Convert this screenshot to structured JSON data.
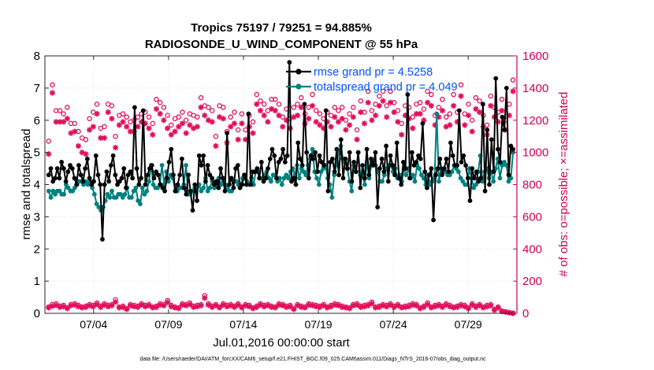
{
  "chart_data": {
    "type": "line",
    "title_line1": "Tropics 75197 / 79251 = 94.885%",
    "title_line2": "RADIOSONDE_U_WIND_COMPONENT @ 55 hPa",
    "xlabel": "Jul.01,2016 00:00:00 start",
    "ylabel_left": "rmse and totalspread",
    "ylabel_right": "# of obs: o=possible; ×=assimilated",
    "footer": "data file: /Users/raeder/DAI/ATM_forcXX/CAM6_setup/f.e21.FHIST_BGC.f09_025.CAM6assim.011/Diags_NTrS_2016-07/obs_diag_output.nc",
    "xlim": [
      0.75,
      32.25
    ],
    "ylim_left": [
      0,
      8
    ],
    "ylim_right": [
      0,
      1600
    ],
    "x_ticks": [
      {
        "x": 4,
        "label": "07/04"
      },
      {
        "x": 9,
        "label": "07/09"
      },
      {
        "x": 14,
        "label": "07/14"
      },
      {
        "x": 19,
        "label": "07/19"
      },
      {
        "x": 24,
        "label": "07/24"
      },
      {
        "x": 29,
        "label": "07/29"
      }
    ],
    "y_ticks_left": [
      0,
      1,
      2,
      3,
      4,
      5,
      6,
      7,
      8
    ],
    "y_ticks_right": [
      0,
      200,
      400,
      600,
      800,
      1000,
      1200,
      1400,
      1600
    ],
    "colors": {
      "rmse": "#000000",
      "spread": "#008080",
      "obs": "#e0105a",
      "legend_text": "#0050ff",
      "right_axis": "#cc0055"
    },
    "series": [
      {
        "name": "rmse grand pr = 4.5258",
        "axis": "left",
        "values": [
          4.3,
          4.5,
          4.1,
          4.2,
          4.5,
          4.2,
          4.7,
          4.5,
          4.1,
          4.4,
          4.6,
          4.5,
          4.2,
          4.0,
          4.6,
          4.3,
          4.1,
          4.5,
          4.8,
          4.2,
          4.0,
          4.1,
          4.9,
          4.3,
          4.0,
          2.3,
          4.0,
          4.4,
          4.1,
          4.6,
          4.9,
          4.3,
          4.0,
          4.1,
          4.2,
          4.5,
          3.9,
          4.3,
          4.4,
          4.2,
          6.4,
          4.5,
          4.0,
          4.2,
          6.3,
          4.0,
          4.3,
          4.5,
          4.6,
          4.2,
          4.4,
          4.3,
          4.0,
          3.9,
          3.8,
          4.2,
          4.7,
          5.1,
          4.3,
          3.8,
          4.0,
          4.3,
          4.8,
          3.9,
          3.7,
          4.3,
          3.8,
          3.2,
          4.0,
          3.5,
          4.9,
          4.6,
          4.9,
          4.1,
          4.6,
          4.3,
          4.2,
          4.0,
          4.1,
          3.9,
          4.5,
          4.2,
          3.8,
          5.6,
          4.0,
          4.2,
          3.9,
          4.5,
          4.6,
          3.9,
          4.0,
          4.3,
          4.0,
          6.2,
          4.0,
          4.4,
          4.4,
          4.5,
          4.2,
          4.7,
          4.1,
          4.2,
          4.5,
          4.8,
          5.1,
          4.9,
          4.2,
          4.7,
          4.8,
          5.1,
          4.7,
          4.9,
          7.8,
          4.1,
          4.2,
          4.0,
          5.3,
          4.8,
          4.6,
          6.5,
          5.0,
          4.2,
          4.9,
          4.8,
          5.0,
          4.4,
          4.9,
          4.7,
          4.6,
          6.3,
          3.8,
          4.7,
          4.8,
          4.4,
          5.1,
          4.3,
          5.4,
          4.2,
          4.8,
          4.5,
          5.0,
          4.1,
          4.7,
          4.4,
          5.0,
          3.9,
          4.6,
          4.2,
          5.1,
          4.3,
          4.8,
          4.6,
          5.0,
          3.3,
          4.5,
          4.8,
          4.4,
          5.2,
          4.1,
          4.9,
          4.6,
          4.3,
          5.3,
          4.2,
          4.0,
          4.7,
          4.5,
          6.8,
          4.2,
          5.0,
          4.6,
          4.7,
          4.9,
          4.8,
          5.9,
          4.4,
          3.9,
          4.3,
          4.5,
          2.9,
          4.3,
          4.5,
          4.8,
          4.3,
          4.5,
          4.8,
          4.4,
          5.3,
          4.9,
          4.6,
          4.6,
          6.3,
          4.7,
          4.9,
          4.6,
          4.2,
          3.5,
          4.5,
          4.2,
          4.4,
          4.1,
          4.2,
          6.5,
          3.8,
          5.7,
          4.0,
          5.4,
          4.4,
          7.3,
          5.1,
          4.7,
          6.1,
          5.7,
          7.0,
          4.3,
          5.2,
          5.1
        ]
      },
      {
        "name": "totalspread grand pr = 4.049",
        "axis": "left",
        "values": [
          3.8,
          3.6,
          3.8,
          3.7,
          3.8,
          3.8,
          3.7,
          3.7,
          4.0,
          3.9,
          3.8,
          3.8,
          3.9,
          4.0,
          4.1,
          4.1,
          4.0,
          4.1,
          4.0,
          4.1,
          3.9,
          3.7,
          3.4,
          3.3,
          3.2,
          3.3,
          3.5,
          3.7,
          3.6,
          3.8,
          3.6,
          3.6,
          3.7,
          3.7,
          3.6,
          3.7,
          3.9,
          3.6,
          3.6,
          3.8,
          3.9,
          3.5,
          3.4,
          3.9,
          3.7,
          3.8,
          4.1,
          4.6,
          4.0,
          3.9,
          3.9,
          4.0,
          4.6,
          4.0,
          4.4,
          4.1,
          4.3,
          4.2,
          3.8,
          3.8,
          3.9,
          3.9,
          4.0,
          4.6,
          3.7,
          3.7,
          3.8,
          3.9,
          3.9,
          4.0,
          3.8,
          3.9,
          4.2,
          3.8,
          3.9,
          4.1,
          3.9,
          4.0,
          4.2,
          4.0,
          4.2,
          4.0,
          3.9,
          3.8,
          3.8,
          4.1,
          4.1,
          4.0,
          4.0,
          4.2,
          4.3,
          4.1,
          4.0,
          4.2,
          4.0,
          4.4,
          4.4,
          4.2,
          4.2,
          4.3,
          4.4,
          4.2,
          4.1,
          4.3,
          4.3,
          4.1,
          4.2,
          4.0,
          4.2,
          4.3,
          4.2,
          4.4,
          4.5,
          4.3,
          4.6,
          4.2,
          4.5,
          4.4,
          4.3,
          4.6,
          4.8,
          5.1,
          4.4,
          4.2,
          4.0,
          4.4,
          4.5,
          4.6,
          4.2,
          4.0,
          3.6,
          4.3,
          4.6,
          5.0,
          5.2,
          4.8,
          4.7,
          4.5,
          4.1,
          3.8,
          4.6,
          4.4,
          5.0,
          4.3,
          4.3,
          4.0,
          4.7,
          4.2,
          4.6,
          4.7,
          4.6,
          4.4,
          4.1,
          4.1,
          4.3,
          4.5,
          4.6,
          4.6,
          4.4,
          4.5,
          4.2,
          4.3,
          4.1,
          4.5,
          4.3,
          4.5,
          4.2,
          4.3,
          4.1,
          4.6,
          4.5,
          4.3,
          4.2,
          4.0,
          4.3,
          4.0,
          4.1,
          4.2,
          6.2,
          4.1,
          4.5,
          4.4,
          4.4,
          4.3,
          4.3,
          4.4,
          4.6,
          4.5,
          4.4,
          4.2,
          4.1,
          4.0,
          4.0,
          4.5,
          4.2,
          3.9,
          4.0,
          4.4,
          4.9,
          4.1,
          4.4,
          4.5,
          4.2,
          4.4,
          4.1,
          4.5,
          4.8,
          4.2,
          4.6,
          4.7,
          4.6,
          4.1,
          4.2,
          5.0
        ]
      },
      {
        "name": "possible",
        "axis": "right",
        "values": [
          1070,
          1420,
          1260,
          1260,
          1240,
          1280,
          1180,
          1180,
          1130,
          1090,
          1080,
          1210,
          1250,
          1300,
          1150,
          1160,
          1300,
          1290,
          1100,
          1230,
          1240,
          1220,
          1190,
          1200,
          1220,
          1240,
          1250,
          1220,
          1180,
          1330,
          1310,
          1280,
          1230,
          1170,
          1210,
          1220,
          1250,
          1200,
          1240,
          1230,
          1220,
          1340,
          1290,
          1280,
          1260,
          1100,
          1290,
          1280,
          1130,
          1220,
          1250,
          1140,
          1240,
          1140,
          1230,
          1190,
          1360,
          1320,
          1300,
          1260,
          1330,
          1330,
          1300,
          1220,
          1270,
          1210,
          1280,
          1300,
          1340,
          1240,
          1280,
          1360,
          1260,
          1240,
          1210,
          1250,
          1230,
          1280,
          1260,
          1280,
          1200,
          1240,
          1280,
          1140,
          1320,
          1250,
          1380,
          1260,
          1300,
          1350,
          1380,
          1290,
          1380,
          1310,
          1260,
          1180,
          1290,
          1280,
          1220,
          1300,
          1310,
          1270,
          1380,
          1360,
          1230,
          1280,
          1330,
          1220,
          1240,
          1360,
          1250,
          1420,
          1240,
          1300,
          1200,
          1340,
          1320,
          1230,
          1170,
          1350,
          1280,
          1250,
          1330,
          1200,
          1300,
          1450
        ]
      },
      {
        "name": "assimilated",
        "axis": "right",
        "values": [
          990,
          1370,
          1190,
          1190,
          1190,
          1210,
          1120,
          1130,
          1040,
          1000,
          990,
          1140,
          1160,
          1240,
          1090,
          1090,
          1250,
          1210,
          1030,
          1170,
          1190,
          1160,
          1130,
          1130,
          1160,
          1190,
          1180,
          1150,
          1110,
          1270,
          1240,
          1200,
          1150,
          1110,
          1130,
          1160,
          1180,
          1120,
          1170,
          1150,
          1160,
          1280,
          1230,
          1200,
          1190,
          1040,
          1220,
          1210,
          1060,
          1160,
          1180,
          1080,
          1180,
          1080,
          1160,
          1120,
          1300,
          1260,
          1230,
          1190,
          1270,
          1260,
          1230,
          1160,
          1200,
          1150,
          1220,
          1230,
          1280,
          1180,
          1210,
          1290,
          1190,
          1170,
          1150,
          1190,
          1160,
          1220,
          1190,
          1210,
          1140,
          1170,
          1220,
          1080,
          1250,
          1180,
          1310,
          1200,
          1230,
          1290,
          1320,
          1220,
          1310,
          1250,
          1190,
          1110,
          1230,
          1210,
          1150,
          1240,
          1240,
          1200,
          1310,
          1290,
          1170,
          1220,
          1260,
          1160,
          1170,
          1290,
          1190,
          1350,
          1170,
          1230,
          1130,
          1270,
          1250,
          1160,
          1110,
          1290,
          1220,
          1190,
          1260,
          1140,
          1230,
          1380
        ]
      },
      {
        "name": "possible_low",
        "axis": "right",
        "values": [
          40,
          55,
          60,
          45,
          50,
          35,
          55,
          60,
          50,
          40,
          45,
          55,
          50,
          65,
          45,
          60,
          50,
          55,
          85,
          40,
          45,
          30,
          55,
          50,
          45,
          60,
          50,
          55,
          40,
          45,
          60,
          55,
          80,
          50,
          40,
          35,
          60,
          55,
          65,
          45,
          50,
          55,
          110,
          60,
          45,
          55,
          40,
          60,
          50,
          55,
          45,
          60,
          40,
          55,
          50,
          35,
          45,
          60,
          50,
          55,
          45,
          40,
          60,
          55,
          45,
          50,
          30,
          55,
          45,
          40,
          60,
          55,
          50,
          45,
          55,
          40,
          50,
          60,
          55,
          45,
          40,
          35,
          55,
          60,
          45,
          50,
          55,
          70,
          40,
          45,
          55,
          50,
          60,
          45,
          55,
          40,
          45,
          50,
          60,
          55,
          35,
          45,
          65,
          40,
          50,
          55,
          45,
          60,
          50,
          40,
          45,
          55,
          50,
          35,
          60,
          45,
          55,
          40,
          50,
          55,
          25,
          40,
          15,
          10,
          5,
          0
        ]
      },
      {
        "name": "assimilated_low",
        "axis": "right",
        "values": [
          35,
          45,
          50,
          38,
          42,
          30,
          48,
          52,
          42,
          35,
          38,
          48,
          42,
          55,
          38,
          52,
          42,
          48,
          70,
          35,
          38,
          25,
          48,
          42,
          38,
          52,
          42,
          48,
          35,
          38,
          52,
          48,
          68,
          42,
          35,
          30,
          52,
          48,
          55,
          38,
          42,
          48,
          95,
          52,
          38,
          48,
          35,
          52,
          42,
          48,
          38,
          52,
          35,
          48,
          42,
          30,
          38,
          52,
          42,
          48,
          38,
          35,
          52,
          48,
          38,
          42,
          25,
          48,
          38,
          35,
          52,
          48,
          42,
          38,
          48,
          35,
          42,
          52,
          48,
          38,
          35,
          30,
          48,
          52,
          38,
          42,
          48,
          60,
          35,
          38,
          48,
          42,
          52,
          38,
          48,
          35,
          38,
          42,
          52,
          48,
          30,
          38,
          55,
          35,
          42,
          48,
          38,
          52,
          42,
          35,
          38,
          48,
          42,
          30,
          52,
          38,
          48,
          35,
          42,
          48,
          20,
          35,
          12,
          8,
          4,
          0
        ]
      }
    ]
  }
}
